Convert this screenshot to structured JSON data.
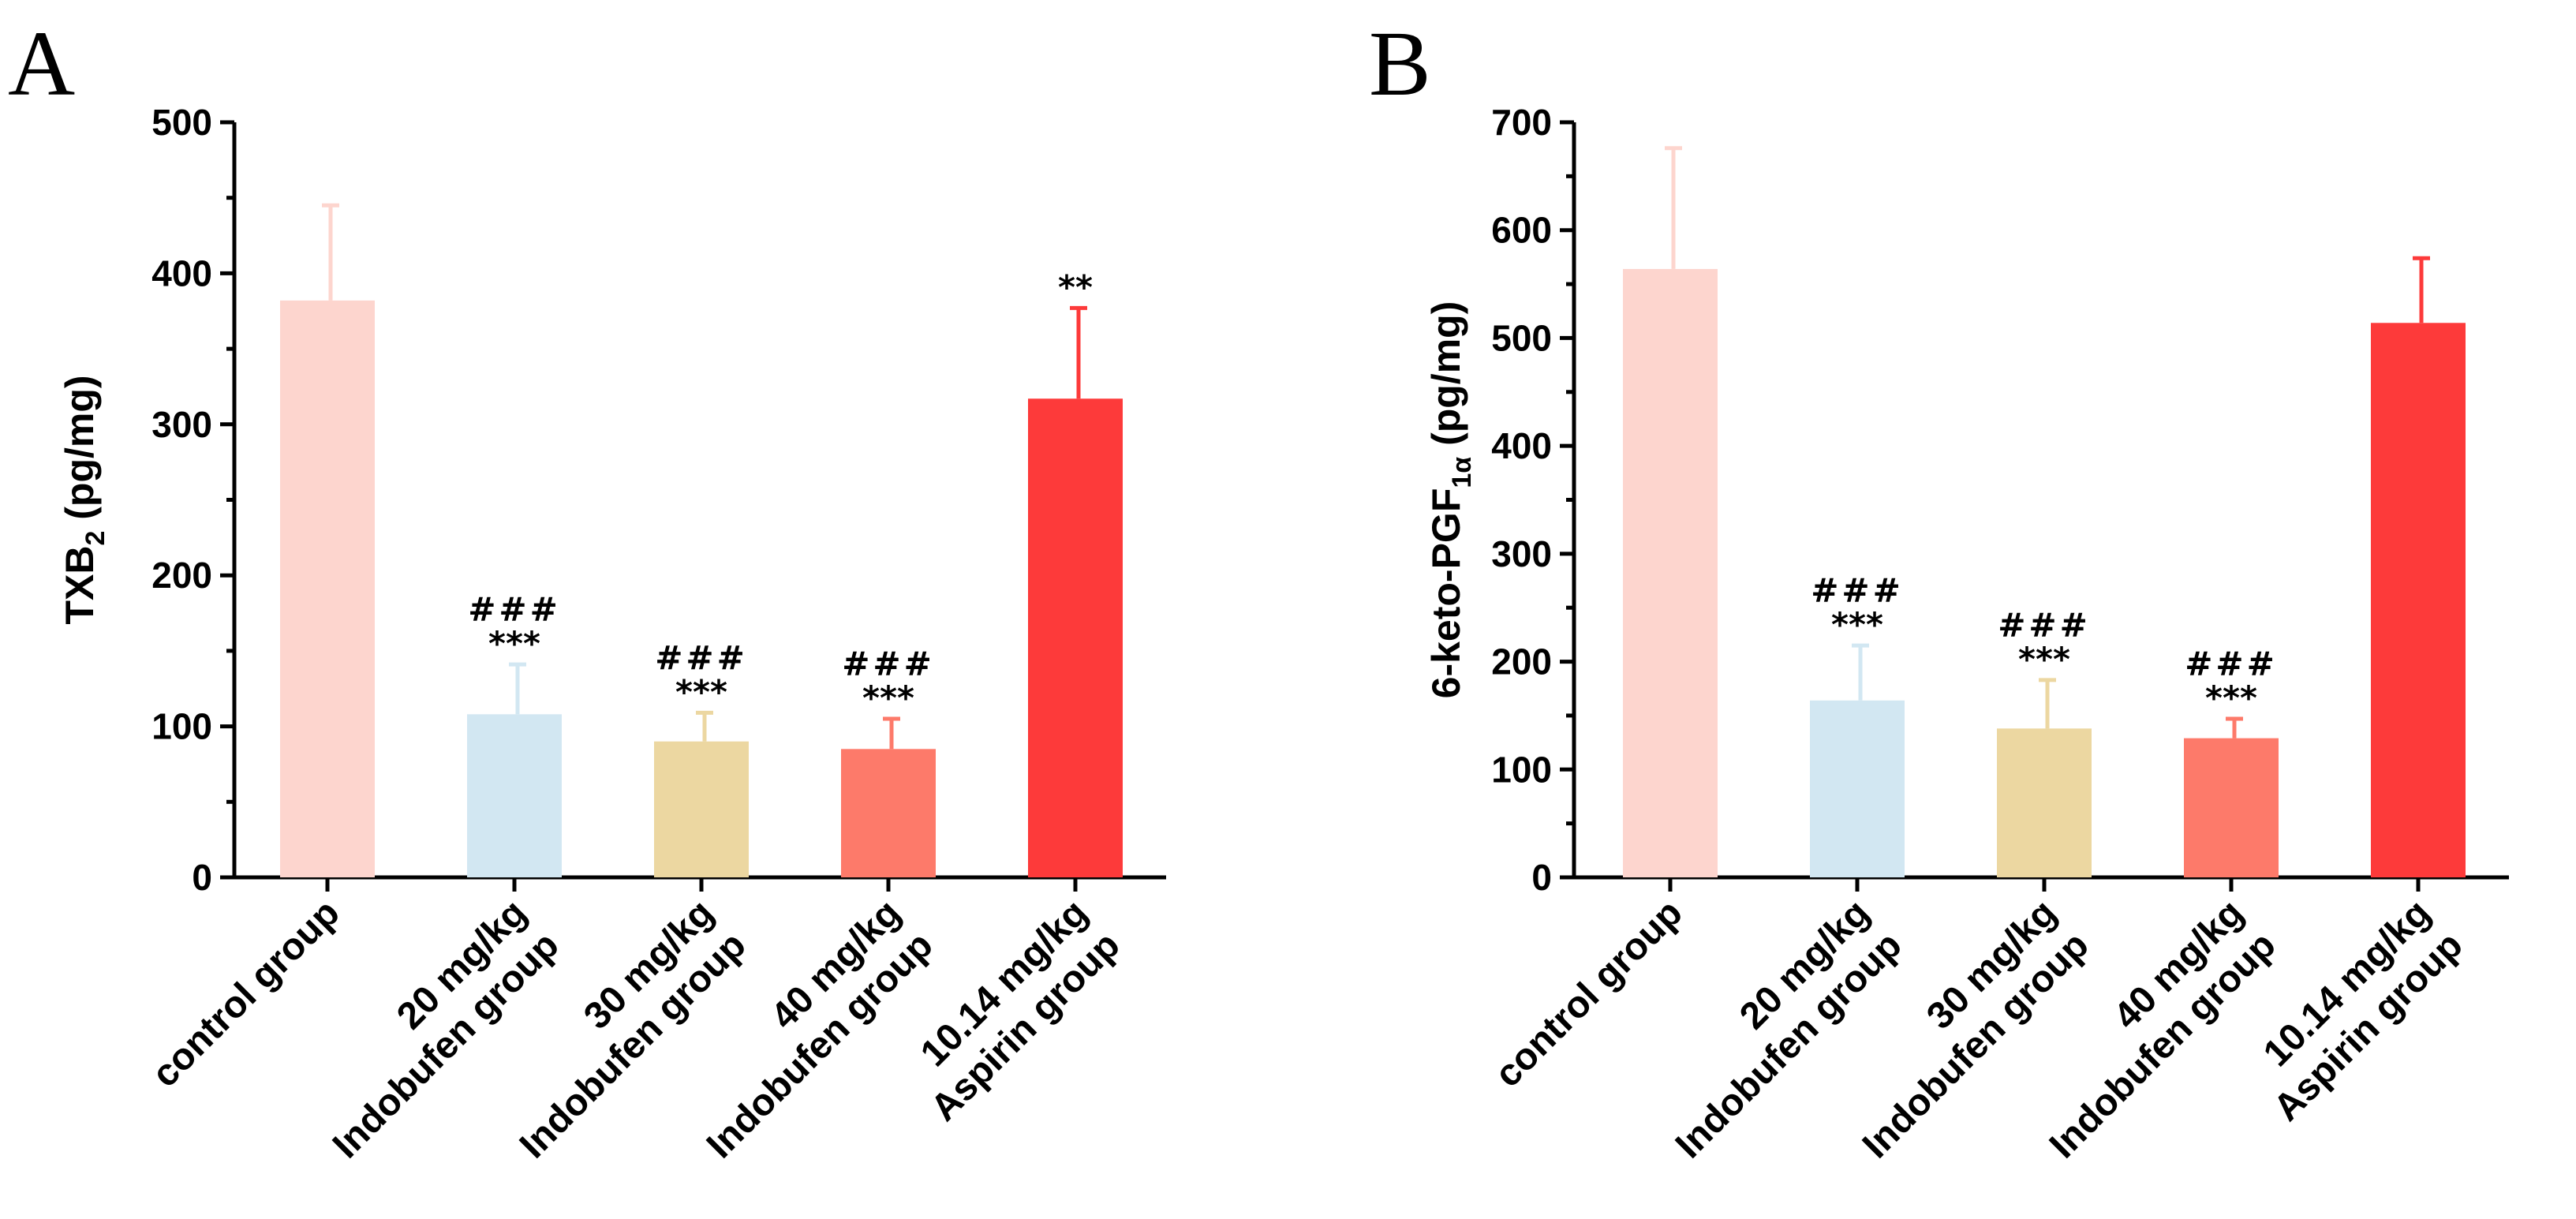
{
  "chart_data": [
    {
      "type": "bar",
      "panel": "A",
      "ylabel": {
        "main": "TXB",
        "sub": "2",
        "unit": " (pg/mg)"
      },
      "ylim": [
        0,
        500
      ],
      "yticks": [
        "0",
        "100",
        "200",
        "300",
        "400",
        "500"
      ],
      "categories": [
        [
          "control group"
        ],
        [
          "20 mg/kg",
          "Indobufen group"
        ],
        [
          "30 mg/kg",
          "Indobufen group"
        ],
        [
          "40 mg/kg",
          "Indobufen group"
        ],
        [
          "10.14 mg/kg",
          "Aspirin group"
        ]
      ],
      "values": [
        382,
        108,
        90,
        85,
        317
      ],
      "errors": [
        63,
        33,
        19,
        20,
        60
      ],
      "colors": [
        "#fdd5ce",
        "#d2e7f2",
        "#ecd7a1",
        "#fd7a6a",
        "#fd3a3a"
      ],
      "annotations": [
        {
          "hash": "",
          "star": ""
        },
        {
          "hash": "###",
          "star": "***"
        },
        {
          "hash": "###",
          "star": "***"
        },
        {
          "hash": "###",
          "star": "***"
        },
        {
          "hash": "",
          "star": "**"
        }
      ]
    },
    {
      "type": "bar",
      "panel": "B",
      "ylabel": {
        "main": "6-keto-PGF",
        "sub": "1α",
        "unit": " (pg/mg)"
      },
      "ylim": [
        0,
        700
      ],
      "yticks": [
        "0",
        "100",
        "200",
        "300",
        "400",
        "500",
        "600",
        "700"
      ],
      "categories": [
        [
          "control group"
        ],
        [
          "20 mg/kg",
          "Indobufen group"
        ],
        [
          "30 mg/kg",
          "Indobufen group"
        ],
        [
          "40 mg/kg",
          "Indobufen group"
        ],
        [
          "10.14 mg/kg",
          "Aspirin group"
        ]
      ],
      "values": [
        564,
        164,
        138,
        129,
        514
      ],
      "errors": [
        112,
        51,
        45,
        18,
        60
      ],
      "colors": [
        "#fdd5ce",
        "#d2e7f2",
        "#ecd7a1",
        "#fd7a6a",
        "#fd3a3a"
      ],
      "annotations": [
        {
          "hash": "",
          "star": ""
        },
        {
          "hash": "###",
          "star": "***"
        },
        {
          "hash": "###",
          "star": "***"
        },
        {
          "hash": "###",
          "star": "***"
        },
        {
          "hash": "",
          "star": ""
        }
      ]
    }
  ]
}
